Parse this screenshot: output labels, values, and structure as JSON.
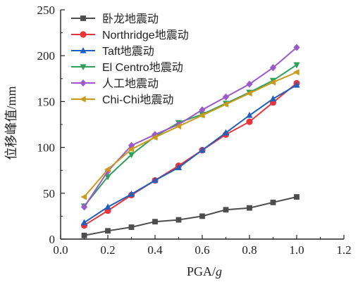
{
  "chart_data": {
    "type": "line",
    "xlabel_main": "PGA/",
    "xlabel_italic": "g",
    "ylabel": "位移峰值/mm",
    "xlim": [
      0.0,
      1.2
    ],
    "ylim": [
      0,
      250
    ],
    "xticks": [
      "0.0",
      "0.2",
      "0.4",
      "0.6",
      "0.8",
      "1.0",
      "1.2"
    ],
    "yticks": [
      "0",
      "50",
      "100",
      "150",
      "200",
      "250"
    ],
    "x": [
      0.1,
      0.2,
      0.3,
      0.4,
      0.5,
      0.6,
      0.7,
      0.8,
      0.9,
      1.0
    ],
    "grid": false,
    "legend_position": "top-left",
    "series": [
      {
        "name": "卧龙地震动",
        "color": "#4d4d4d",
        "marker": "square",
        "values": [
          4,
          9,
          13,
          19,
          21,
          25,
          32,
          34,
          40,
          46
        ]
      },
      {
        "name": "Northridge地震动",
        "color": "#e8343a",
        "marker": "circle",
        "values": [
          15,
          31,
          48,
          64,
          80,
          97,
          114,
          128,
          149,
          170
        ]
      },
      {
        "name": "Taft地震动",
        "color": "#1f5fbf",
        "marker": "triangle-up",
        "values": [
          18,
          35,
          49,
          64,
          78,
          97,
          116,
          135,
          153,
          168
        ]
      },
      {
        "name": "El Centro地震动",
        "color": "#2ea05a",
        "marker": "triangle-down",
        "values": [
          36,
          68,
          92,
          112,
          127,
          136,
          148,
          160,
          173,
          190
        ]
      },
      {
        "name": "人工地震动",
        "color": "#9b59c9",
        "marker": "diamond",
        "values": [
          35,
          74,
          102,
          114,
          125,
          141,
          155,
          169,
          187,
          209
        ]
      },
      {
        "name": "Chi-Chi地震动",
        "color": "#c99a1c",
        "marker": "triangle-left",
        "values": [
          46,
          76,
          98,
          111,
          123,
          135,
          147,
          159,
          171,
          182
        ]
      }
    ]
  }
}
